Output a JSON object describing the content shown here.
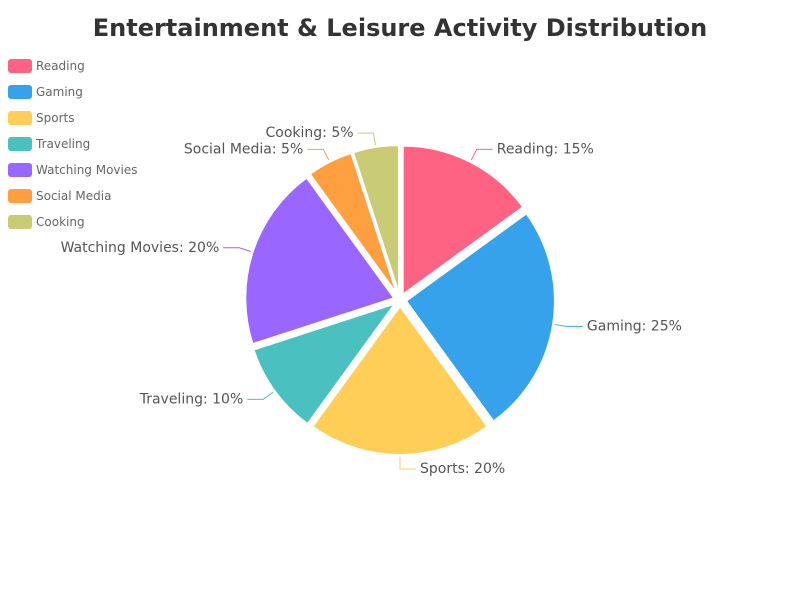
{
  "chart_data": {
    "type": "pie",
    "title": "Entertainment & Leisure Activity Distribution",
    "legend_position": "top-left",
    "categories": [
      "Reading",
      "Gaming",
      "Sports",
      "Traveling",
      "Watching Movies",
      "Social Media",
      "Cooking"
    ],
    "values": [
      15,
      25,
      20,
      10,
      20,
      5,
      5
    ],
    "colors": [
      "#ff6384",
      "#36a2eb",
      "#ffce56",
      "#4bc0c0",
      "#9966ff",
      "#ff9f40",
      "#c9cb75"
    ],
    "labels": [
      "Reading: 15%",
      "Gaming: 25%",
      "Sports: 20%",
      "Traveling: 10%",
      "Watching Movies: 20%",
      "Social Media: 5%",
      "Cooking: 5%"
    ]
  }
}
